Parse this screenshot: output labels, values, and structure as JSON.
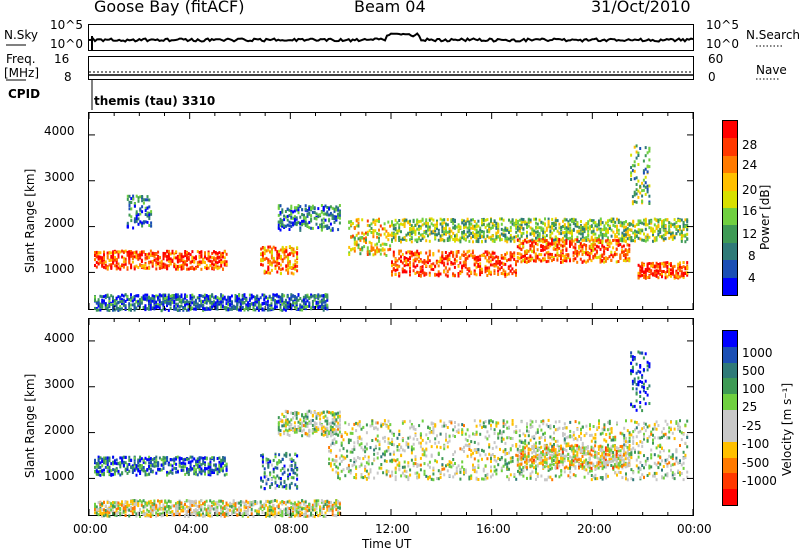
{
  "header": {
    "site": "Goose Bay (fitACF)",
    "beam": "Beam 04",
    "date": "31/Oct/2010"
  },
  "top_panels": {
    "nsky_label": "N.Sky",
    "nsky_ticks": [
      "10^5",
      "10^0"
    ],
    "nsearch_label": "N.Search",
    "nsearch_ticks": [
      "10^5",
      "10^0"
    ],
    "freq_label_line1": "Freq.",
    "freq_label_line2": "[MHz]",
    "freq_ticks": [
      "16",
      "8"
    ],
    "nave_label": "Nave",
    "nave_ticks": [
      "60",
      "0"
    ],
    "cpid_label": "CPID",
    "cpid_value": "themis (tau) 3310"
  },
  "chart_data": [
    {
      "type": "heatmap",
      "name": "power",
      "ylabel": "Slant Range [km]",
      "xlabel": "Time UT",
      "x_ticks": [
        "00:00",
        "04:00",
        "08:00",
        "12:00",
        "16:00",
        "20:00",
        "00:00"
      ],
      "y_ticks": [
        "1000",
        "2000",
        "3000",
        "4000"
      ],
      "xlim_hours": [
        0,
        24
      ],
      "ylim_km": [
        180,
        4500
      ],
      "colorbar": {
        "label": "Power [dB]",
        "ticks": [
          "28",
          "24",
          "20",
          "16",
          "12",
          "8",
          "4"
        ],
        "colors": [
          "#ff0000",
          "#ff3800",
          "#ff7a00",
          "#ffc000",
          "#d8e000",
          "#70d040",
          "#3e9a55",
          "#2f7a78",
          "#1b4fb5",
          "#0000ff"
        ]
      },
      "bands": [
        {
          "t0": 0.2,
          "t1": 5.5,
          "r0": 1100,
          "r1": 1500,
          "level": 0.85
        },
        {
          "t0": 6.8,
          "t1": 8.3,
          "r0": 1000,
          "r1": 1600,
          "level": 0.75
        },
        {
          "t0": 7.5,
          "t1": 10.0,
          "r0": 1950,
          "r1": 2500,
          "level": 0.25
        },
        {
          "t0": 10.3,
          "t1": 12.0,
          "r0": 1400,
          "r1": 2200,
          "level": 0.6
        },
        {
          "t0": 12.0,
          "t1": 17.0,
          "r0": 950,
          "r1": 1500,
          "level": 0.85
        },
        {
          "t0": 12.0,
          "t1": 23.8,
          "r0": 1700,
          "r1": 2200,
          "level": 0.45
        },
        {
          "t0": 17.0,
          "t1": 21.5,
          "r0": 1250,
          "r1": 1750,
          "level": 0.8
        },
        {
          "t0": 21.8,
          "t1": 23.8,
          "r0": 900,
          "r1": 1250,
          "level": 0.85
        },
        {
          "t0": 21.5,
          "t1": 22.3,
          "r0": 2500,
          "r1": 3800,
          "level": 0.4
        },
        {
          "t0": 0.2,
          "t1": 9.5,
          "r0": 200,
          "r1": 550,
          "level": 0.2
        },
        {
          "t0": 1.5,
          "t1": 2.5,
          "r0": 2000,
          "r1": 2700,
          "level": 0.25
        }
      ]
    },
    {
      "type": "heatmap",
      "name": "velocity",
      "ylabel": "Slant Range [km]",
      "xlabel": "Time UT",
      "x_ticks": [
        "00:00",
        "04:00",
        "08:00",
        "12:00",
        "16:00",
        "20:00",
        "00:00"
      ],
      "y_ticks": [
        "1000",
        "2000",
        "3000",
        "4000"
      ],
      "xlim_hours": [
        0,
        24
      ],
      "ylim_km": [
        180,
        4500
      ],
      "colorbar": {
        "label": "Velocity [m s⁻¹]",
        "ticks": [
          "1000",
          "500",
          "100",
          "25",
          "-25",
          "-100",
          "-500",
          "-1000"
        ],
        "colors": [
          "#0000ff",
          "#1b4fb5",
          "#2f7a78",
          "#3e9a55",
          "#70d040",
          "#c8c8c8",
          "#c8c8c8",
          "#ffc000",
          "#ff7a00",
          "#ff3800",
          "#ff0000"
        ]
      },
      "bands": [
        {
          "t0": 0.2,
          "t1": 5.5,
          "r0": 1100,
          "r1": 1500,
          "level": 0.8
        },
        {
          "t0": 6.8,
          "t1": 8.3,
          "r0": 800,
          "r1": 1600,
          "level": 0.75
        },
        {
          "t0": 9.5,
          "t1": 23.8,
          "r0": 1000,
          "r1": 2300,
          "level": 0.5
        },
        {
          "t0": 7.5,
          "t1": 10.0,
          "r0": 1950,
          "r1": 2500,
          "level": 0.5
        },
        {
          "t0": 21.5,
          "t1": 22.3,
          "r0": 2500,
          "r1": 3800,
          "level": 0.9
        },
        {
          "t0": 0.2,
          "t1": 10.0,
          "r0": 200,
          "r1": 550,
          "level": 0.45
        },
        {
          "t0": 17.0,
          "t1": 21.5,
          "r0": 1250,
          "r1": 1750,
          "level": 0.4
        }
      ]
    }
  ]
}
